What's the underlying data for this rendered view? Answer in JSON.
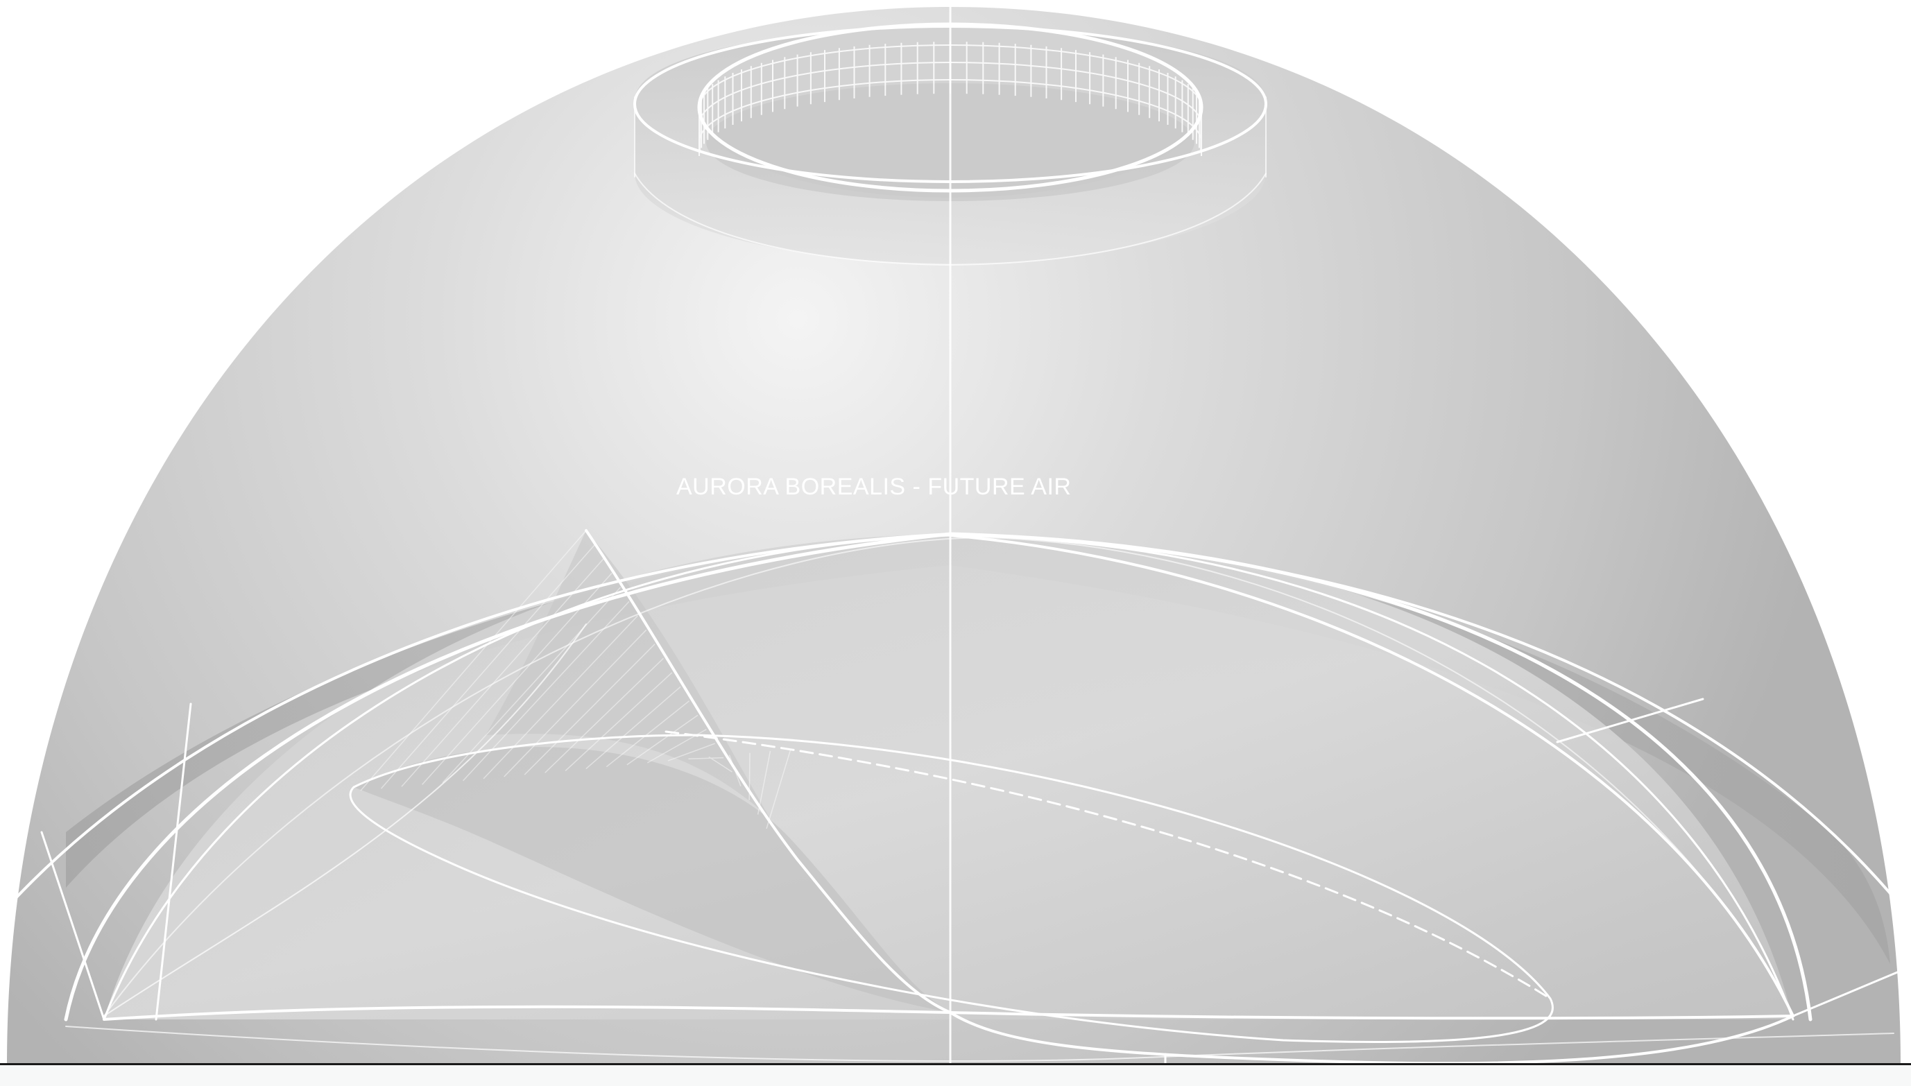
{
  "drawing": {
    "caption": "AURORA BOREALIS - FUTURE AIR",
    "colors": {
      "background": "#ffffff",
      "dome_light": "#f2f2f2",
      "dome_mid": "#d6d6d6",
      "dome_dark": "#b9b9b9",
      "band_dark": "#a9a9a9",
      "line": "#ffffff",
      "ground": "#1a1a1a"
    }
  }
}
